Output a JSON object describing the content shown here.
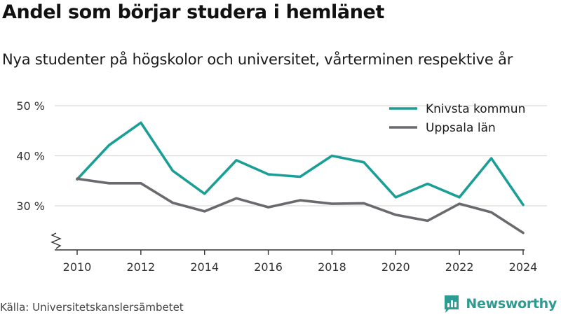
{
  "header": {
    "title": "Andel som börjar studera i hemlänet",
    "subtitle": "Nya studenter på högskolor och universitet, vårterminen respektive år"
  },
  "footer": {
    "source": "Källa: Universitetskanslersämbetet",
    "brand": "Newsworthy"
  },
  "colors": {
    "knivsta": "#1a9e96",
    "uppsala": "#6a6a6e",
    "grid": "#d9d9d9",
    "axis": "#333333",
    "brand": "#2e9b93"
  },
  "chart_data": {
    "type": "line",
    "title": "Andel som börjar studera i hemlänet",
    "subtitle": "Nya studenter på högskolor och universitet, vårterminen respektive år",
    "x": [
      2010,
      2011,
      2012,
      2013,
      2014,
      2015,
      2016,
      2017,
      2018,
      2019,
      2020,
      2021,
      2022,
      2023,
      2024
    ],
    "x_ticks": [
      "2010",
      "2012",
      "2014",
      "2016",
      "2018",
      "2020",
      "2022",
      "2024"
    ],
    "y_ticks": [
      "30 %",
      "40 %",
      "50 %"
    ],
    "y_tick_values": [
      30,
      40,
      50
    ],
    "ylim": [
      22,
      50
    ],
    "y_axis_break": true,
    "grid": true,
    "legend_position": "top-right",
    "series": [
      {
        "name": "Knivsta kommun",
        "color": "#1a9e96",
        "values": [
          35.3,
          42.1,
          46.6,
          37.0,
          32.4,
          39.1,
          36.3,
          35.8,
          40.0,
          38.7,
          31.7,
          34.4,
          31.7,
          39.5,
          30.2
        ]
      },
      {
        "name": "Uppsala län",
        "color": "#6a6a6e",
        "values": [
          35.4,
          34.5,
          34.5,
          30.6,
          28.9,
          31.5,
          29.7,
          31.1,
          30.4,
          30.5,
          28.2,
          27.0,
          30.4,
          28.7,
          24.6
        ]
      }
    ]
  }
}
